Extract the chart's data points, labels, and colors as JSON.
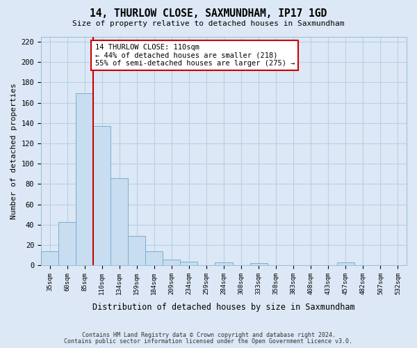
{
  "title": "14, THURLOW CLOSE, SAXMUNDHAM, IP17 1GD",
  "subtitle": "Size of property relative to detached houses in Saxmundham",
  "xlabel": "Distribution of detached houses by size in Saxmundham",
  "ylabel": "Number of detached properties",
  "bin_labels": [
    "35sqm",
    "60sqm",
    "85sqm",
    "110sqm",
    "134sqm",
    "159sqm",
    "184sqm",
    "209sqm",
    "234sqm",
    "259sqm",
    "284sqm",
    "308sqm",
    "333sqm",
    "358sqm",
    "383sqm",
    "408sqm",
    "433sqm",
    "457sqm",
    "482sqm",
    "507sqm",
    "532sqm"
  ],
  "bar_values": [
    14,
    43,
    169,
    137,
    86,
    29,
    14,
    6,
    4,
    0,
    3,
    0,
    2,
    0,
    0,
    0,
    0,
    3,
    0,
    0,
    0
  ],
  "bar_color": "#c8ddf0",
  "bar_edge_color": "#7aaed0",
  "vline_color": "#cc0000",
  "annotation_text": "14 THURLOW CLOSE: 110sqm\n← 44% of detached houses are smaller (218)\n55% of semi-detached houses are larger (275) →",
  "annotation_box_color": "white",
  "annotation_box_edge_color": "#cc0000",
  "ylim": [
    0,
    225
  ],
  "yticks": [
    0,
    20,
    40,
    60,
    80,
    100,
    120,
    140,
    160,
    180,
    200,
    220
  ],
  "footnote1": "Contains HM Land Registry data © Crown copyright and database right 2024.",
  "footnote2": "Contains public sector information licensed under the Open Government Licence v3.0.",
  "fig_background_color": "#dce8f5",
  "plot_background": "#dce8f5",
  "grid_color": "#b8cfe8"
}
